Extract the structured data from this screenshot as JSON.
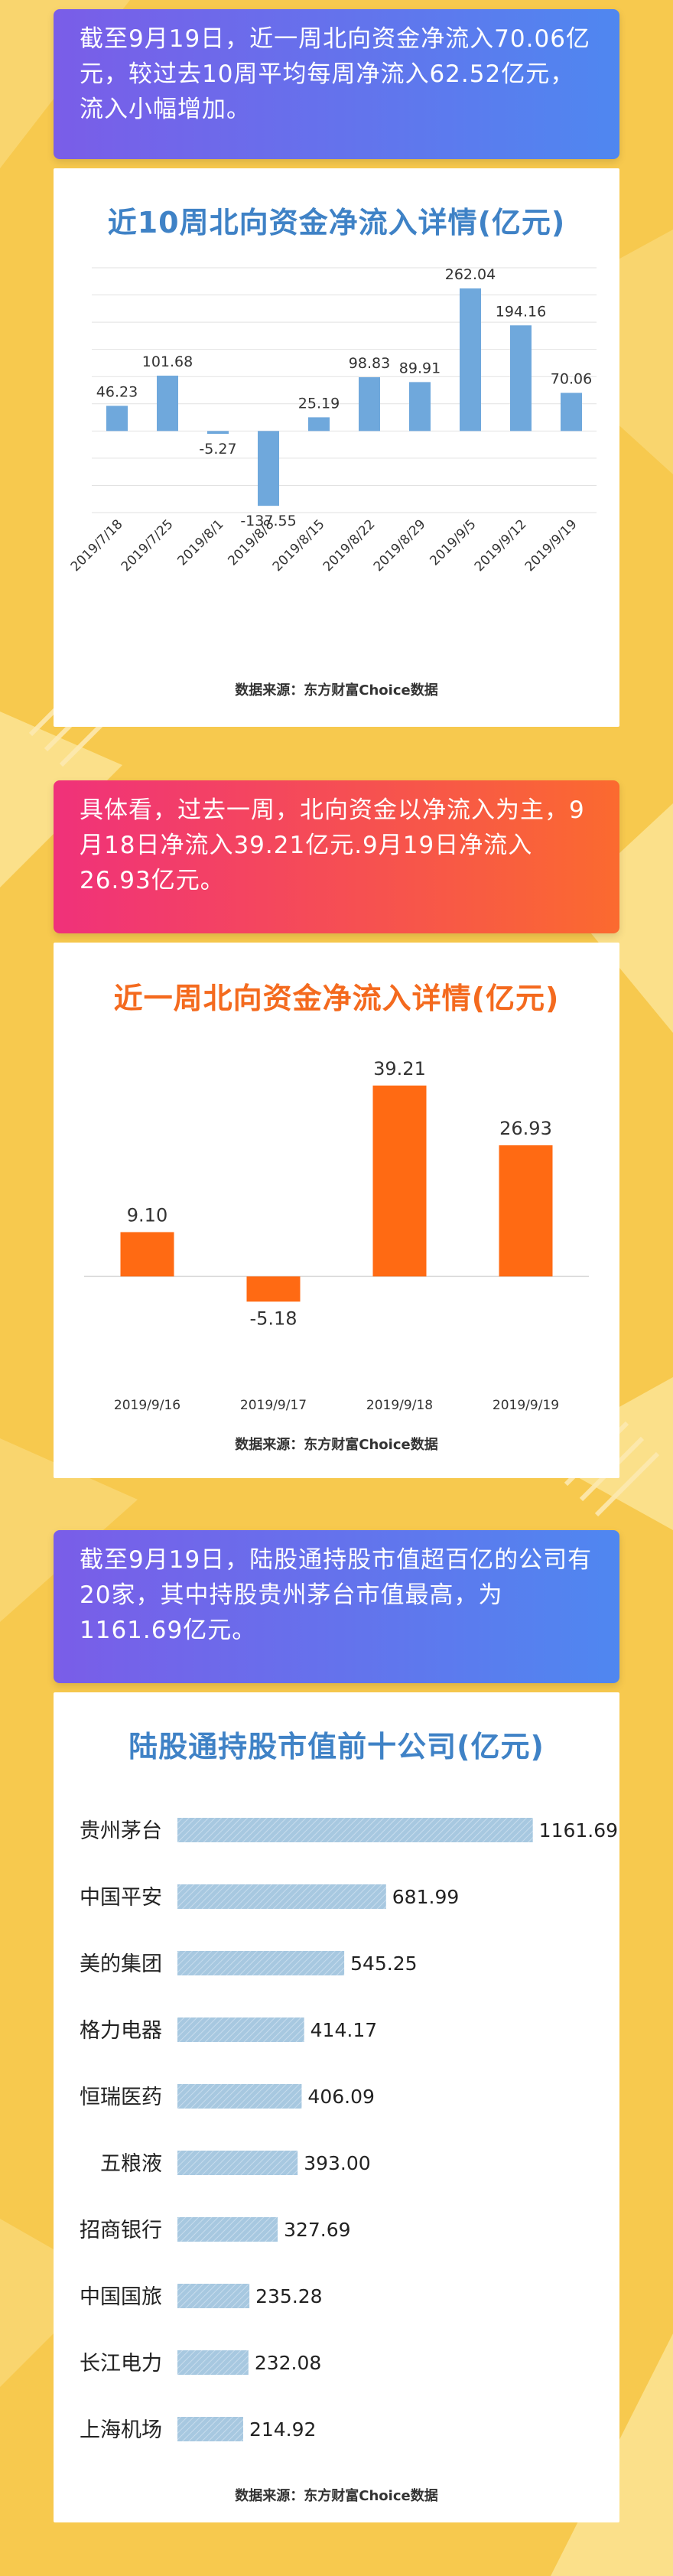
{
  "sections": [
    {
      "banner": "截至9月19日，近一周北向资金净流入70.06亿元，较过去10周平均每周净流入62.52亿元，流入小幅增加。",
      "source": "数据来源：东方财富Choice数据"
    },
    {
      "banner": "具体看，过去一周，北向资金以净流入为主，9月18日净流入39.21亿元.9月19日净流入26.93亿元。",
      "source": "数据来源：东方财富Choice数据"
    },
    {
      "banner": "截至9月19日，陆股通持股市值超百亿的公司有20家，其中持股贵州茅台市值最高，为1161.69亿元。",
      "source": "数据来源：东方财富Choice数据"
    }
  ],
  "colors": {
    "background": "#f7c94e",
    "blue_bar": "#6fa8dc",
    "orange_bar": "#ff6a13",
    "hbar": "#a7c8e0",
    "title_blue": "#3f82c6",
    "title_orange": "#f46a1e"
  },
  "chart_data": [
    {
      "type": "bar",
      "title": "近10周北向资金净流入详情(亿元)",
      "categories": [
        "2019/7/18",
        "2019/7/25",
        "2019/8/1",
        "2019/8/8",
        "2019/8/15",
        "2019/8/22",
        "2019/8/29",
        "2019/9/5",
        "2019/9/12",
        "2019/9/19"
      ],
      "values": [
        46.23,
        101.68,
        -5.27,
        -137.55,
        25.19,
        98.83,
        89.91,
        262.04,
        194.16,
        70.06
      ],
      "data_labels": [
        "46.23",
        "101.68",
        "-5.27",
        "-137.55",
        "25.19",
        "98.83",
        "89.91",
        "262.04",
        "194.16",
        "70.06"
      ],
      "ylim": [
        -150,
        300
      ],
      "grid": true,
      "xlabel": "",
      "ylabel": ""
    },
    {
      "type": "bar",
      "title": "近一周北向资金净流入详情(亿元)",
      "categories": [
        "2019/9/16",
        "2019/9/17",
        "2019/9/18",
        "2019/9/19"
      ],
      "values": [
        9.1,
        -5.18,
        39.21,
        26.93
      ],
      "data_labels": [
        "9.10",
        "-5.18",
        "39.21",
        "26.93"
      ],
      "ylim": [
        -10,
        45
      ],
      "grid": false,
      "xlabel": "",
      "ylabel": ""
    },
    {
      "type": "bar",
      "orientation": "horizontal",
      "title": "陆股通持股市值前十公司(亿元)",
      "categories": [
        "贵州茅台",
        "中国平安",
        "美的集团",
        "格力电器",
        "恒瑞医药",
        "五粮液",
        "招商银行",
        "中国国旅",
        "长江电力",
        "上海机场"
      ],
      "values": [
        1161.69,
        681.99,
        545.25,
        414.17,
        406.09,
        393.0,
        327.69,
        235.28,
        232.08,
        214.92
      ],
      "data_labels": [
        "1161.69",
        "681.99",
        "545.25",
        "414.17",
        "406.09",
        "393.00",
        "327.69",
        "235.28",
        "232.08",
        "214.92"
      ],
      "xlim": [
        0,
        1200
      ],
      "grid": false,
      "xlabel": "",
      "ylabel": ""
    }
  ]
}
